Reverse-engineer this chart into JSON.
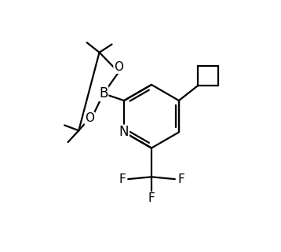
{
  "background_color": "#ffffff",
  "line_color": "#000000",
  "line_width": 1.6,
  "font_size": 11,
  "figsize": [
    3.58,
    3.21
  ],
  "dpi": 100,
  "xlim": [
    0,
    10
  ],
  "ylim": [
    0,
    9
  ]
}
